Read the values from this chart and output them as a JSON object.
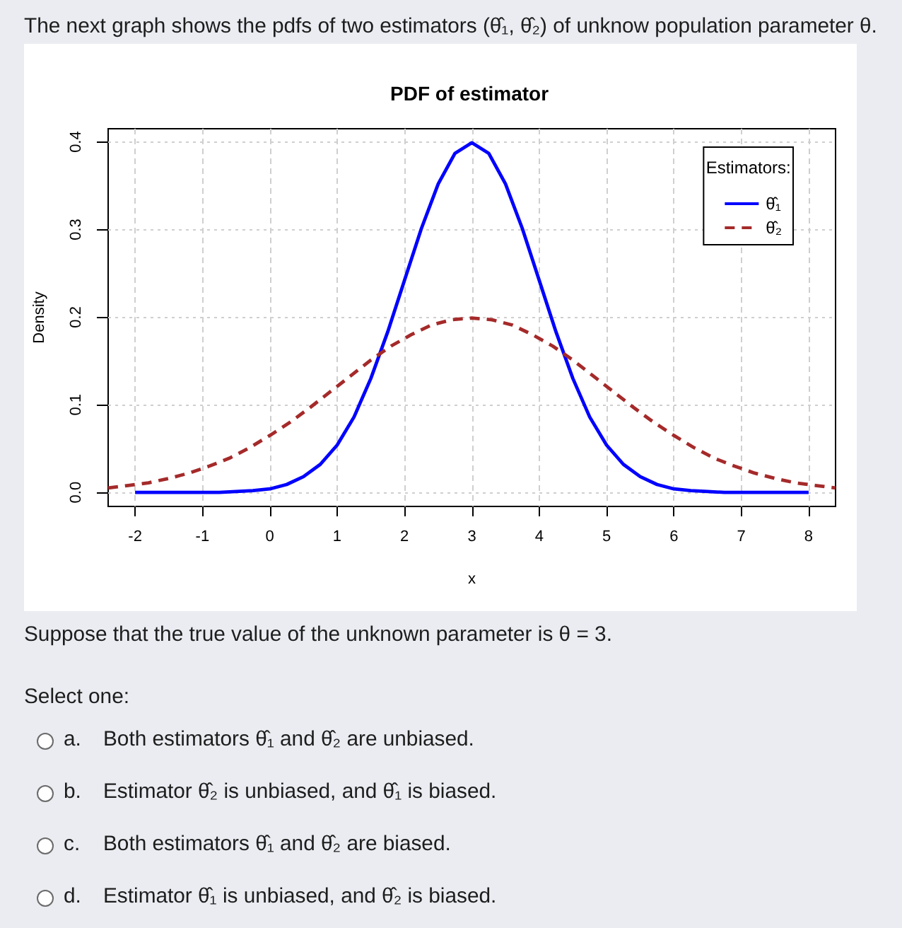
{
  "chart_data": {
    "type": "line",
    "title": "PDF of estimator",
    "xlabel": "x",
    "ylabel": "Density",
    "legend_title": "Estimators:",
    "annotations": [
      "The next graph shows the pdfs of two estimators (θ̂₁, θ̂₂) of unknow population parameter θ.",
      "Suppose that the true value of the unknown parameter is θ = 3.",
      "Select one:",
      "a. Both estimators θ̂₁ and θ̂₂ are unbiased.",
      "b. Estimator θ̂₂ is unbiased, and θ̂₁ is biased.",
      "c. Both estimators θ̂₁ and θ̂₂ are biased.",
      "d. Estimator θ̂₁ is unbiased, and θ̂₂ is biased."
    ],
    "xlim": [
      -2.4,
      8.4
    ],
    "xticks": [
      -2,
      -1,
      0,
      1,
      2,
      3,
      4,
      5,
      6,
      7,
      8
    ],
    "ylim": [
      -0.016,
      0.415
    ],
    "yticks": [
      {
        "value": 0,
        "label": "0.0"
      },
      0.1,
      0.2,
      0.3,
      0.4
    ],
    "grid": true,
    "legend": "top right",
    "marker": "none",
    "series": [
      {
        "name": "θ̂₁",
        "color": "#0000ff",
        "line_style": "solid",
        "x": [
          -2,
          -1.75,
          -1.5,
          -1.25,
          -1,
          -0.75,
          -0.5,
          -0.25,
          0,
          0.25,
          0.5,
          0.75,
          1,
          1.25,
          1.5,
          1.75,
          2,
          2.25,
          2.5,
          2.75,
          3,
          3.25,
          3.5,
          3.75,
          4,
          4.25,
          4.5,
          4.75,
          5,
          5.25,
          5.5,
          5.75,
          6,
          6.25,
          6.5,
          6.75,
          7,
          7.25,
          7.5,
          7.75,
          8
        ],
        "values": [
          0,
          0,
          0,
          0,
          0,
          0,
          0.001,
          0.002,
          0.004,
          0.009,
          0.018,
          0.032,
          0.054,
          0.086,
          0.13,
          0.183,
          0.242,
          0.301,
          0.352,
          0.387,
          0.399,
          0.387,
          0.352,
          0.301,
          0.242,
          0.183,
          0.13,
          0.086,
          0.054,
          0.032,
          0.018,
          0.009,
          0.004,
          0.002,
          0.001,
          0,
          0,
          0,
          0,
          0,
          0
        ]
      },
      {
        "name": "θ̂₂",
        "color": "#a52a2a",
        "line_style": "dashed",
        "x": [
          -2.4,
          -2.1,
          -1.8,
          -1.5,
          -1.2,
          -0.9,
          -0.6,
          -0.3,
          0,
          0.3,
          0.6,
          0.9,
          1.2,
          1.5,
          1.8,
          2.1,
          2.4,
          2.7,
          3,
          3.3,
          3.6,
          3.9,
          4.2,
          4.5,
          4.8,
          5.1,
          5.4,
          5.7,
          6,
          6.3,
          6.6,
          6.9,
          7.2,
          7.5,
          7.8,
          8.1,
          8.4
        ],
        "values": [
          0.005,
          0.008,
          0.011,
          0.016,
          0.022,
          0.03,
          0.039,
          0.051,
          0.065,
          0.08,
          0.097,
          0.115,
          0.133,
          0.151,
          0.167,
          0.18,
          0.191,
          0.197,
          0.199,
          0.197,
          0.191,
          0.18,
          0.167,
          0.151,
          0.133,
          0.115,
          0.097,
          0.08,
          0.065,
          0.051,
          0.039,
          0.03,
          0.022,
          0.016,
          0.011,
          0.008,
          0.005
        ]
      }
    ]
  }
}
